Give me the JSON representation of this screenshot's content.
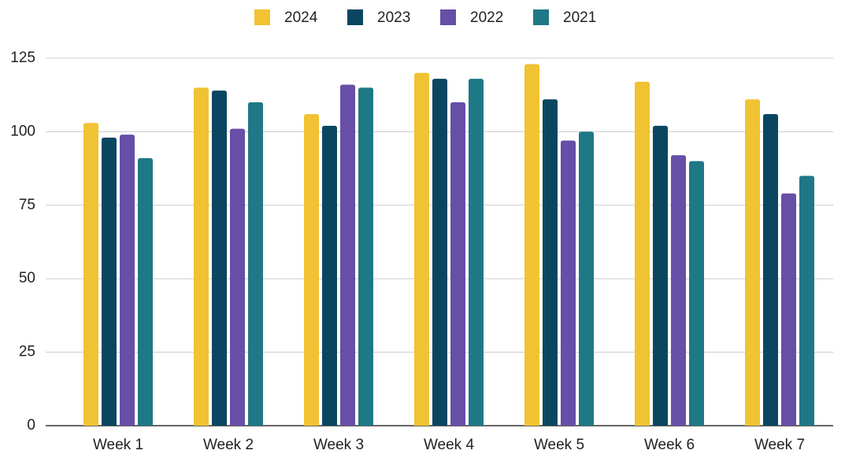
{
  "chart_data": {
    "type": "bar",
    "categories": [
      "Week 1",
      "Week 2",
      "Week 3",
      "Week 4",
      "Week 5",
      "Week 6",
      "Week 7"
    ],
    "series": [
      {
        "name": "2024",
        "color": "#f1c232",
        "values": [
          103,
          115,
          106,
          120,
          123,
          117,
          111
        ]
      },
      {
        "name": "2023",
        "color": "#0b4661",
        "values": [
          98,
          114,
          102,
          118,
          111,
          102,
          106
        ]
      },
      {
        "name": "2022",
        "color": "#674ea7",
        "values": [
          99,
          101,
          116,
          110,
          97,
          92,
          79
        ]
      },
      {
        "name": "2021",
        "color": "#1f7886",
        "values": [
          91,
          110,
          115,
          118,
          100,
          90,
          85
        ]
      }
    ],
    "ylim": [
      0,
      125
    ],
    "yticks": [
      0,
      25,
      50,
      75,
      100,
      125
    ],
    "grid": true,
    "legend": "top"
  }
}
